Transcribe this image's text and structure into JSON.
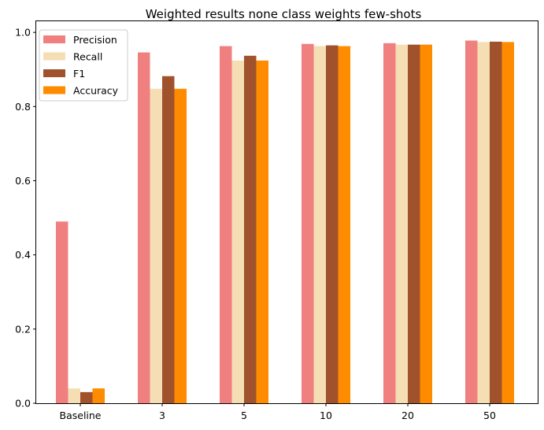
{
  "chart_data": {
    "type": "bar",
    "title": "Weighted results none class weights few-shots",
    "xlabel": "",
    "ylabel": "",
    "categories": [
      "Baseline",
      "3",
      "5",
      "10",
      "20",
      "50"
    ],
    "ylim": [
      0,
      1.03
    ],
    "yticks": [
      "0.0",
      "0.2",
      "0.4",
      "0.6",
      "0.8",
      "1.0"
    ],
    "grid": false,
    "legend_position": "top-left",
    "series": [
      {
        "name": "Precision",
        "color": "#F08080",
        "values": [
          0.49,
          0.946,
          0.963,
          0.969,
          0.971,
          0.978
        ]
      },
      {
        "name": "Recall",
        "color": "#F5DEB3",
        "values": [
          0.04,
          0.848,
          0.924,
          0.963,
          0.967,
          0.974
        ]
      },
      {
        "name": "F1",
        "color": "#A0522D",
        "values": [
          0.03,
          0.882,
          0.937,
          0.965,
          0.967,
          0.975
        ]
      },
      {
        "name": "Accuracy",
        "color": "#FF8C00",
        "values": [
          0.04,
          0.848,
          0.924,
          0.963,
          0.967,
          0.974
        ]
      }
    ]
  }
}
